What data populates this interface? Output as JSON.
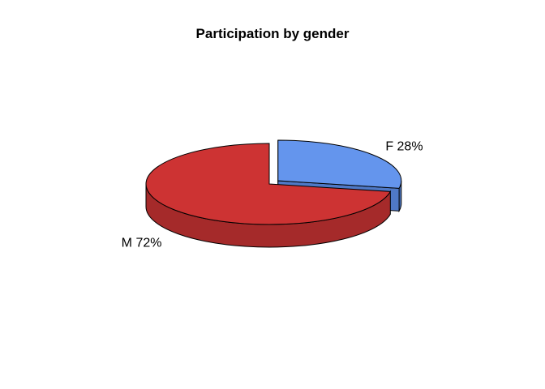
{
  "chart_data": {
    "type": "pie",
    "style": "3d-exploded",
    "title": "Participation by gender",
    "slices": [
      {
        "label": "F 28%",
        "category": "F",
        "value": 28,
        "color": "#6495ED",
        "side_color": "#4F79C6",
        "exploded": true
      },
      {
        "label": "M 72%",
        "category": "M",
        "value": 72,
        "color": "#CD3333",
        "side_color": "#A52A2A",
        "exploded": false
      }
    ]
  }
}
